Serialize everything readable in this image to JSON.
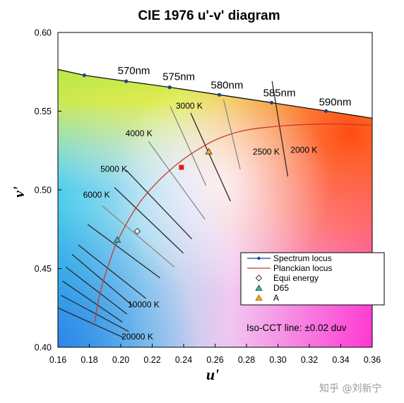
{
  "chart_data": {
    "type": "scatter",
    "title": "CIE 1976 u'-v' diagram",
    "xlabel": "u'",
    "ylabel": "v'",
    "xlim": [
      0.16,
      0.36
    ],
    "ylim": [
      0.4,
      0.6
    ],
    "x_ticks": [
      "0.16",
      "0.18",
      "0.20",
      "0.22",
      "0.24",
      "0.26",
      "0.28",
      "0.30",
      "0.32",
      "0.34",
      "0.36"
    ],
    "y_ticks": [
      "0.40",
      "0.45",
      "0.50",
      "0.55",
      "0.60"
    ],
    "grid": false,
    "legend_position": "bottom-right",
    "series": [
      {
        "name": "Spectrum locus",
        "color": "#1f3f8f",
        "style": "line-marker",
        "x": [
          0.16,
          0.1768,
          0.2034,
          0.2311,
          0.2627,
          0.296,
          0.3306,
          0.36
        ],
        "y": [
          0.5765,
          0.5728,
          0.569,
          0.5652,
          0.5604,
          0.5554,
          0.5501,
          0.5455
        ]
      },
      {
        "name": "Planckian locus",
        "color": "#c83a2a",
        "style": "line",
        "x": [
          0.1834,
          0.1856,
          0.188,
          0.1924,
          0.1977,
          0.2096,
          0.2218,
          0.2364,
          0.2499,
          0.2632,
          0.28,
          0.3051,
          0.3339,
          0.36
        ],
        "y": [
          0.4158,
          0.4288,
          0.439,
          0.453,
          0.467,
          0.4885,
          0.5034,
          0.5168,
          0.5261,
          0.533,
          0.538,
          0.5408,
          0.5419,
          0.541
        ]
      },
      {
        "name": "Equi energy",
        "marker": "diamond",
        "color": "#333333",
        "x": [
          0.2105
        ],
        "y": [
          0.4737
        ]
      },
      {
        "name": "D65",
        "marker": "triangle",
        "color": "#2cb8b0",
        "x": [
          0.1978
        ],
        "y": [
          0.4683
        ]
      },
      {
        "name": "A",
        "marker": "triangle",
        "color": "#f5a623",
        "x": [
          0.256
        ],
        "y": [
          0.5243
        ]
      },
      {
        "name": "",
        "marker": "square",
        "color": "#e01b1b",
        "x": [
          0.2386
        ],
        "y": [
          0.5143
        ]
      }
    ],
    "wavelength_labels": [
      {
        "text": "570nm",
        "x": 0.2034,
        "y": 0.569
      },
      {
        "text": "575nm",
        "x": 0.2311,
        "y": 0.5652
      },
      {
        "text": "580nm",
        "x": 0.2627,
        "y": 0.5604
      },
      {
        "text": "585nm",
        "x": 0.296,
        "y": 0.5554
      },
      {
        "text": "590nm",
        "x": 0.3306,
        "y": 0.5501
      }
    ],
    "isotherms": [
      {
        "label": "2000 K",
        "x1": 0.2963,
        "y1": 0.569,
        "x2": 0.3063,
        "y2": 0.5085,
        "color": "#2a2a2a"
      },
      {
        "label": "2500 K",
        "x1": 0.2654,
        "y1": 0.5574,
        "x2": 0.276,
        "y2": 0.513,
        "color": "#888888"
      },
      {
        "label": "3000 K",
        "x1": 0.2315,
        "y1": 0.553,
        "x2": 0.2542,
        "y2": 0.5028,
        "color": "#888888"
      },
      {
        "label": "",
        "x1": 0.2445,
        "y1": 0.5488,
        "x2": 0.2698,
        "y2": 0.4928,
        "color": "#2a2a2a"
      },
      {
        "label": "4000 K",
        "x1": 0.2177,
        "y1": 0.5307,
        "x2": 0.2536,
        "y2": 0.4812,
        "color": "#888888"
      },
      {
        "label": "5000 K",
        "x1": 0.2034,
        "y1": 0.5125,
        "x2": 0.2452,
        "y2": 0.4688,
        "color": "#2a2a2a"
      },
      {
        "label": "6000 K",
        "x1": 0.196,
        "y1": 0.5015,
        "x2": 0.2398,
        "y2": 0.4598,
        "color": "#2a2a2a"
      },
      {
        "label": "",
        "x1": 0.188,
        "y1": 0.49,
        "x2": 0.234,
        "y2": 0.451,
        "color": "#888888"
      },
      {
        "label": "",
        "x1": 0.179,
        "y1": 0.478,
        "x2": 0.225,
        "y2": 0.444,
        "color": "#2a2a2a"
      },
      {
        "label": "",
        "x1": 0.173,
        "y1": 0.465,
        "x2": 0.216,
        "y2": 0.431,
        "color": "#2a2a2a"
      },
      {
        "label": "",
        "x1": 0.169,
        "y1": 0.459,
        "x2": 0.208,
        "y2": 0.426,
        "color": "#2a2a2a"
      },
      {
        "label": "",
        "x1": 0.165,
        "y1": 0.451,
        "x2": 0.204,
        "y2": 0.421,
        "color": "#2a2a2a"
      },
      {
        "label": "",
        "x1": 0.163,
        "y1": 0.442,
        "x2": 0.201,
        "y2": 0.416,
        "color": "#2a2a2a"
      },
      {
        "label": "",
        "x1": 0.162,
        "y1": 0.433,
        "x2": 0.205,
        "y2": 0.41,
        "color": "#2a2a2a"
      },
      {
        "label": "",
        "x1": 0.16,
        "y1": 0.425,
        "x2": 0.202,
        "y2": 0.406,
        "color": "#2a2a2a"
      }
    ],
    "isotherm_side_labels": [
      {
        "text": "10000 K",
        "x": 0.2045,
        "y": 0.4253
      },
      {
        "text": "20000 K",
        "x": 0.2005,
        "y": 0.405
      }
    ],
    "annotation": "Iso-CCT line: ±0.02 duv"
  },
  "legend": {
    "items": [
      {
        "label": "Spectrum locus"
      },
      {
        "label": "Planckian  locus"
      },
      {
        "label": "Equi energy"
      },
      {
        "label": "D65"
      },
      {
        "label": "A"
      }
    ]
  },
  "watermark": "知乎 @刘新宁"
}
